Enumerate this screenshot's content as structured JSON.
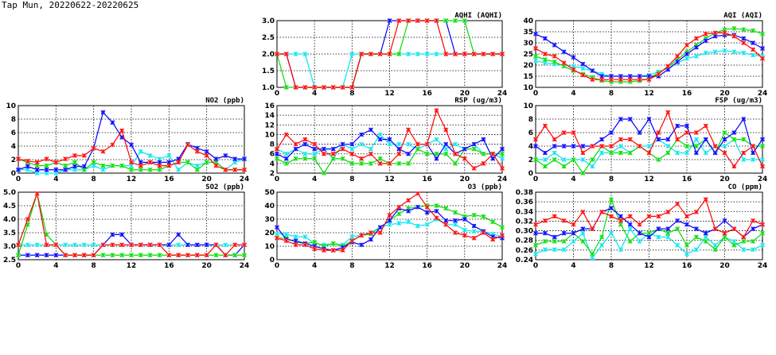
{
  "title": "Tap Mun, 20220622-20220625",
  "colors": {
    "blue": "#0000ff",
    "red": "#ff0000",
    "green": "#00dd00",
    "cyan": "#00e5ee"
  },
  "chart_data": [
    {
      "id": "aqhi",
      "type": "line",
      "title": "AQHI (AQHI)",
      "ylim": [
        1,
        3
      ],
      "yticks": [
        "1.0",
        "1.5",
        "2.0",
        "2.5",
        "3.0"
      ],
      "xlim": [
        0,
        24
      ],
      "xticks": [
        "0",
        "4",
        "8",
        "12",
        "16",
        "20",
        "24"
      ],
      "grid": true,
      "series": [
        {
          "name": "blue",
          "values": [
            2,
            2,
            1,
            1,
            1,
            1,
            1,
            1,
            1,
            2,
            2,
            2,
            3,
            3,
            3,
            3,
            3,
            3,
            3,
            2,
            2,
            2,
            2,
            2,
            2
          ]
        },
        {
          "name": "cyan",
          "values": [
            2,
            2,
            2,
            2,
            1,
            1,
            1,
            1,
            2,
            2,
            2,
            2,
            2,
            2,
            2,
            2,
            2,
            2,
            2,
            2,
            2,
            2,
            2,
            2,
            2
          ]
        },
        {
          "name": "green",
          "values": [
            2,
            1,
            1,
            1,
            1,
            1,
            1,
            1,
            1,
            2,
            2,
            2,
            2,
            2,
            3,
            3,
            3,
            3,
            3,
            3,
            3,
            2,
            2,
            2,
            2
          ]
        },
        {
          "name": "red",
          "values": [
            2,
            2,
            1,
            1,
            1,
            1,
            1,
            1,
            1,
            2,
            2,
            2,
            2,
            3,
            3,
            3,
            3,
            3,
            2,
            2,
            2,
            2,
            2,
            2,
            2
          ]
        }
      ]
    },
    {
      "id": "aqi",
      "type": "line",
      "title": "AQI (AQI)",
      "ylim": [
        10,
        40
      ],
      "yticks": [
        "10",
        "15",
        "20",
        "25",
        "30",
        "35",
        "40"
      ],
      "xlim": [
        0,
        24
      ],
      "xticks": [
        "0",
        "4",
        "8",
        "12",
        "16",
        "20",
        "24"
      ],
      "grid": true,
      "series": [
        {
          "name": "cyan",
          "values": [
            22,
            21,
            20.5,
            20,
            19.5,
            18.5,
            17.5,
            16,
            15,
            15,
            15,
            15,
            15.5,
            17,
            18.5,
            21,
            23,
            24,
            25.5,
            26,
            26.5,
            26,
            25.5,
            24.5,
            24
          ]
        },
        {
          "name": "green",
          "values": [
            24,
            22.5,
            21.5,
            19.5,
            17.5,
            16,
            14.5,
            13,
            12.5,
            12.5,
            12.5,
            13,
            14,
            16.5,
            19,
            22.5,
            26,
            29,
            32,
            34.5,
            36,
            36.5,
            36,
            35.5,
            34
          ]
        },
        {
          "name": "blue",
          "values": [
            34,
            32,
            29,
            26,
            23.5,
            20.5,
            17.5,
            15,
            15,
            15,
            15,
            15,
            15,
            15,
            18,
            21.5,
            25,
            28,
            31,
            33,
            33.5,
            33.5,
            32,
            30,
            27.5
          ]
        },
        {
          "name": "red",
          "values": [
            27.5,
            25,
            24,
            21,
            18,
            15.5,
            13.5,
            13.5,
            13.5,
            13.5,
            13.5,
            13.5,
            13.5,
            16,
            19.5,
            24,
            29,
            32,
            34,
            34.5,
            34.5,
            33,
            30,
            27,
            23
          ]
        }
      ]
    },
    {
      "id": "no2",
      "type": "line",
      "title": "NO2 (ppb)",
      "ylim": [
        0,
        10
      ],
      "yticks": [
        "0",
        "2",
        "4",
        "6",
        "8",
        "10"
      ],
      "xlim": [
        0,
        24
      ],
      "xticks": [
        "0",
        "4",
        "8",
        "12",
        "16",
        "20",
        "24"
      ],
      "grid": true,
      "series": [
        {
          "name": "cyan",
          "values": [
            0.5,
            0.5,
            0,
            0,
            0,
            0.5,
            0.5,
            0.5,
            1.1,
            0.5,
            1.1,
            1.1,
            1.1,
            3.2,
            2.6,
            2.1,
            2.6,
            0.5,
            1.6,
            1.1,
            1.6,
            1.6,
            0.5,
            1.6,
            2.1
          ]
        },
        {
          "name": "green",
          "values": [
            2.1,
            1.6,
            1.1,
            1.1,
            1.6,
            1.1,
            1.6,
            0.5,
            1.6,
            1.1,
            1.1,
            1.1,
            0.5,
            0.5,
            0.5,
            0.5,
            1.1,
            1.6,
            1.6,
            0.5,
            1.6,
            1.6,
            0.5,
            0.5,
            0.5
          ]
        },
        {
          "name": "blue",
          "values": [
            0.5,
            1,
            0.5,
            0.5,
            0.5,
            0.5,
            1,
            1,
            3.7,
            9,
            7.5,
            5.3,
            4.2,
            1.6,
            1.6,
            1.6,
            1.6,
            2.1,
            4.3,
            3.7,
            3.2,
            2.1,
            2.6,
            2.1,
            2.1
          ]
        },
        {
          "name": "red",
          "values": [
            2.1,
            1.8,
            1.6,
            2.1,
            1.6,
            2.1,
            2.6,
            2.6,
            3.7,
            3.2,
            4.2,
            6.3,
            1.6,
            1.1,
            1.6,
            1.1,
            1.1,
            1.6,
            4.2,
            3.2,
            2.6,
            1.1,
            0.5,
            0.5,
            0.5
          ]
        }
      ]
    },
    {
      "id": "rsp",
      "type": "line",
      "title": "RSP (ug/m3)",
      "ylim": [
        2,
        16
      ],
      "yticks": [
        "2",
        "4",
        "6",
        "8",
        "10",
        "12",
        "14",
        "16"
      ],
      "xlim": [
        0,
        24
      ],
      "xticks": [
        "0",
        "4",
        "8",
        "12",
        "16",
        "20",
        "24"
      ],
      "grid": true,
      "series": [
        {
          "name": "cyan",
          "values": [
            7,
            6,
            7,
            6,
            6,
            7,
            5,
            8,
            7,
            8,
            7,
            10,
            8,
            8,
            8,
            7,
            8,
            9,
            7,
            8,
            7,
            8,
            6,
            6,
            5
          ]
        },
        {
          "name": "green",
          "values": [
            5,
            4,
            5,
            5,
            5,
            2,
            5,
            5,
            4,
            4,
            4,
            5,
            4,
            4,
            4,
            7,
            6,
            6,
            6,
            4,
            7,
            7,
            6,
            6,
            6
          ]
        },
        {
          "name": "blue",
          "values": [
            6,
            5,
            7,
            8,
            7,
            7,
            7,
            8,
            8,
            10,
            11,
            9,
            9,
            7,
            6,
            8,
            8,
            5,
            8,
            6,
            7,
            8,
            9,
            5,
            7
          ]
        },
        {
          "name": "red",
          "values": [
            7,
            10,
            8,
            9,
            8,
            6,
            6,
            7,
            6,
            5,
            6,
            4,
            4,
            6,
            11,
            8,
            8,
            15,
            11,
            6,
            5,
            3,
            4,
            6,
            3
          ]
        }
      ]
    },
    {
      "id": "fsp",
      "type": "line",
      "title": "FSP (ug/m3)",
      "ylim": [
        0,
        10
      ],
      "yticks": [
        "0",
        "2",
        "4",
        "6",
        "8",
        "10"
      ],
      "xlim": [
        0,
        24
      ],
      "xticks": [
        "0",
        "4",
        "8",
        "12",
        "16",
        "20",
        "24"
      ],
      "grid": true,
      "series": [
        {
          "name": "cyan",
          "values": [
            2,
            2,
            3,
            2,
            2,
            2,
            1,
            3,
            3,
            4,
            3,
            4,
            4,
            5,
            4,
            3,
            3,
            5,
            3,
            4,
            4,
            5,
            2,
            2,
            2
          ]
        },
        {
          "name": "green",
          "values": [
            2,
            1,
            2,
            1,
            2,
            0,
            2,
            4,
            3,
            3,
            3,
            4,
            3,
            2,
            3,
            5,
            4,
            4,
            5,
            3,
            6,
            5,
            5,
            4,
            4
          ]
        },
        {
          "name": "blue",
          "values": [
            4,
            3,
            4,
            4,
            4,
            4,
            4,
            5,
            6,
            8,
            8,
            6,
            8,
            5,
            5,
            7,
            7,
            3,
            5,
            3,
            5,
            6,
            8,
            3,
            5
          ]
        },
        {
          "name": "red",
          "values": [
            5,
            7,
            5,
            6,
            6,
            3,
            4,
            4,
            4,
            5,
            5,
            4,
            3,
            6,
            9,
            5,
            6,
            6,
            7,
            4,
            3,
            1,
            3,
            4,
            1
          ]
        }
      ]
    },
    {
      "id": "so2",
      "type": "line",
      "title": "SO2 (ppb)",
      "ylim": [
        2.5,
        5
      ],
      "yticks": [
        "2.5",
        "3.0",
        "3.5",
        "4.0",
        "4.5",
        "5.0"
      ],
      "xlim": [
        0,
        24
      ],
      "xticks": [
        "0",
        "4",
        "8",
        "12",
        "16",
        "20",
        "24"
      ],
      "grid": true,
      "series": [
        {
          "name": "cyan",
          "values": [
            3.05,
            3.05,
            3.05,
            3.05,
            3.05,
            3.05,
            3.05,
            3.05,
            3.05,
            3.05,
            3.05,
            3.05,
            3.05,
            3.05,
            3.05,
            3.05,
            3.05,
            3.05,
            3.05,
            3.05,
            3.05,
            3.05,
            3.05,
            3.05,
            3.05
          ]
        },
        {
          "name": "blue",
          "values": [
            2.67,
            2.67,
            2.67,
            2.67,
            2.67,
            2.67,
            2.67,
            2.67,
            2.67,
            3.05,
            3.43,
            3.43,
            3.05,
            3.05,
            3.05,
            3.05,
            3.05,
            3.43,
            3.05,
            3.05,
            3.05,
            3.05,
            2.67,
            2.67,
            3.05
          ]
        },
        {
          "name": "green",
          "values": [
            2.67,
            3.8,
            4.95,
            3.43,
            3.05,
            2.67,
            2.67,
            2.67,
            2.67,
            2.67,
            2.67,
            2.67,
            2.67,
            2.67,
            2.67,
            2.67,
            2.67,
            2.67,
            2.67,
            2.67,
            2.67,
            2.67,
            2.67,
            2.67,
            2.67
          ]
        },
        {
          "name": "red",
          "values": [
            3.05,
            4.0,
            4.95,
            3.05,
            3.05,
            2.67,
            2.67,
            2.67,
            2.67,
            3.05,
            3.05,
            3.05,
            3.05,
            3.05,
            3.05,
            3.05,
            2.67,
            2.67,
            2.67,
            2.67,
            2.67,
            3.05,
            2.67,
            3.05,
            3.05
          ]
        }
      ]
    },
    {
      "id": "o3",
      "type": "line",
      "title": "O3 (ppb)",
      "ylim": [
        0,
        50
      ],
      "yticks": [
        "0",
        "10",
        "20",
        "30",
        "40",
        "50"
      ],
      "xlim": [
        0,
        24
      ],
      "xticks": [
        "0",
        "4",
        "8",
        "12",
        "16",
        "20",
        "24"
      ],
      "grid": true,
      "series": [
        {
          "name": "cyan",
          "values": [
            19,
            19,
            17,
            17,
            12,
            11,
            12,
            11,
            17,
            18,
            20,
            24,
            26,
            27,
            28,
            25,
            26,
            30,
            26,
            26,
            22,
            21,
            21,
            19,
            17
          ]
        },
        {
          "name": "green",
          "values": [
            16,
            16,
            13,
            12,
            13,
            10,
            12,
            10,
            14,
            18,
            19,
            24,
            29,
            34,
            38,
            39,
            40,
            40,
            38,
            35,
            32,
            33,
            32,
            28,
            24
          ]
        },
        {
          "name": "blue",
          "values": [
            24,
            15,
            14,
            12,
            10,
            8,
            7,
            9,
            13,
            11,
            15,
            24,
            29,
            38,
            36,
            39,
            35,
            36,
            29,
            29,
            30,
            25,
            21,
            17,
            16
          ]
        },
        {
          "name": "red",
          "values": [
            16,
            14,
            11,
            11,
            8,
            7,
            7,
            7,
            14,
            18,
            20,
            20,
            33,
            39,
            44,
            49,
            39,
            31,
            26,
            20,
            18,
            16,
            20,
            15,
            18
          ]
        }
      ]
    },
    {
      "id": "co",
      "type": "line",
      "title": "CO (ppm)",
      "ylim": [
        0.24,
        0.38
      ],
      "yticks": [
        "0.24",
        "0.26",
        "0.28",
        "0.30",
        "0.32",
        "0.34",
        "0.36",
        "0.38"
      ],
      "xlim": [
        0,
        24
      ],
      "xticks": [
        "0",
        "4",
        "8",
        "12",
        "16",
        "20",
        "24"
      ],
      "grid": true,
      "series": [
        {
          "name": "cyan",
          "values": [
            0.252,
            0.261,
            0.261,
            0.261,
            0.278,
            0.295,
            0.244,
            0.27,
            0.295,
            0.261,
            0.304,
            0.278,
            0.295,
            0.287,
            0.287,
            0.27,
            0.252,
            0.261,
            0.287,
            0.27,
            0.287,
            0.278,
            0.261,
            0.261,
            0.27
          ]
        },
        {
          "name": "green",
          "values": [
            0.27,
            0.278,
            0.278,
            0.278,
            0.295,
            0.278,
            0.252,
            0.287,
            0.365,
            0.313,
            0.278,
            0.295,
            0.295,
            0.304,
            0.295,
            0.304,
            0.27,
            0.287,
            0.278,
            0.261,
            0.287,
            0.27,
            0.278,
            0.278,
            0.295
          ]
        },
        {
          "name": "blue",
          "values": [
            0.295,
            0.295,
            0.287,
            0.295,
            0.295,
            0.304,
            0.304,
            0.339,
            0.347,
            0.33,
            0.313,
            0.295,
            0.287,
            0.304,
            0.304,
            0.321,
            0.313,
            0.304,
            0.295,
            0.304,
            0.321,
            0.304,
            0.287,
            0.304,
            0.313
          ]
        },
        {
          "name": "red",
          "values": [
            0.313,
            0.321,
            0.33,
            0.321,
            0.313,
            0.339,
            0.304,
            0.339,
            0.33,
            0.321,
            0.33,
            0.313,
            0.33,
            0.33,
            0.339,
            0.356,
            0.33,
            0.339,
            0.365,
            0.304,
            0.295,
            0.304,
            0.287,
            0.321,
            0.313
          ]
        }
      ]
    }
  ]
}
